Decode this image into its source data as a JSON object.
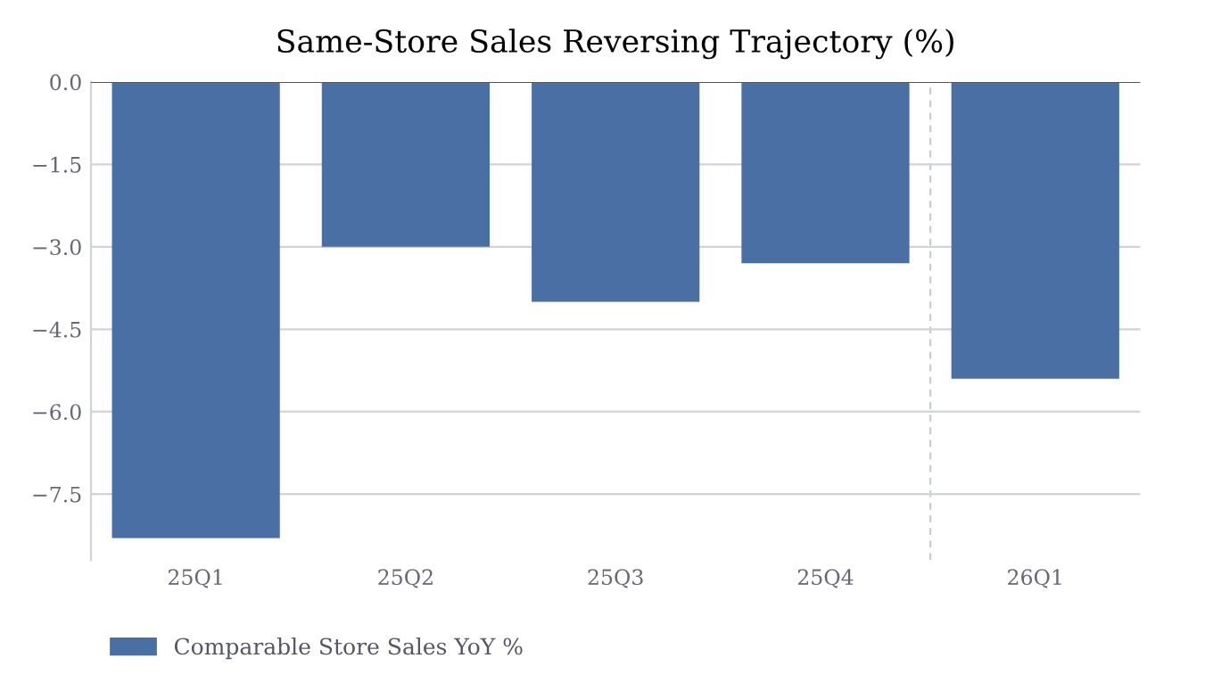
{
  "chart_data": {
    "type": "bar",
    "title": "Same-Store Sales Reversing Trajectory (%)",
    "categories": [
      "25Q1",
      "25Q2",
      "25Q3",
      "25Q4",
      "26Q1"
    ],
    "series": [
      {
        "name": "Comparable Store Sales YoY %",
        "color": "#4a6fa5",
        "values": [
          -8.3,
          -3.0,
          -4.0,
          -3.3,
          -5.4
        ]
      }
    ],
    "ylim": [
      -8.7,
      0
    ],
    "yticks": [
      {
        "value": 0,
        "label": "0.0"
      },
      {
        "value": -1.5,
        "label": "−1.5"
      },
      {
        "value": -3,
        "label": "−3.0"
      },
      {
        "value": -4.5,
        "label": "−4.5"
      },
      {
        "value": -6,
        "label": "−6.0"
      },
      {
        "value": -7.5,
        "label": "−7.5"
      }
    ],
    "grid": "y",
    "legend": "bottom left"
  }
}
